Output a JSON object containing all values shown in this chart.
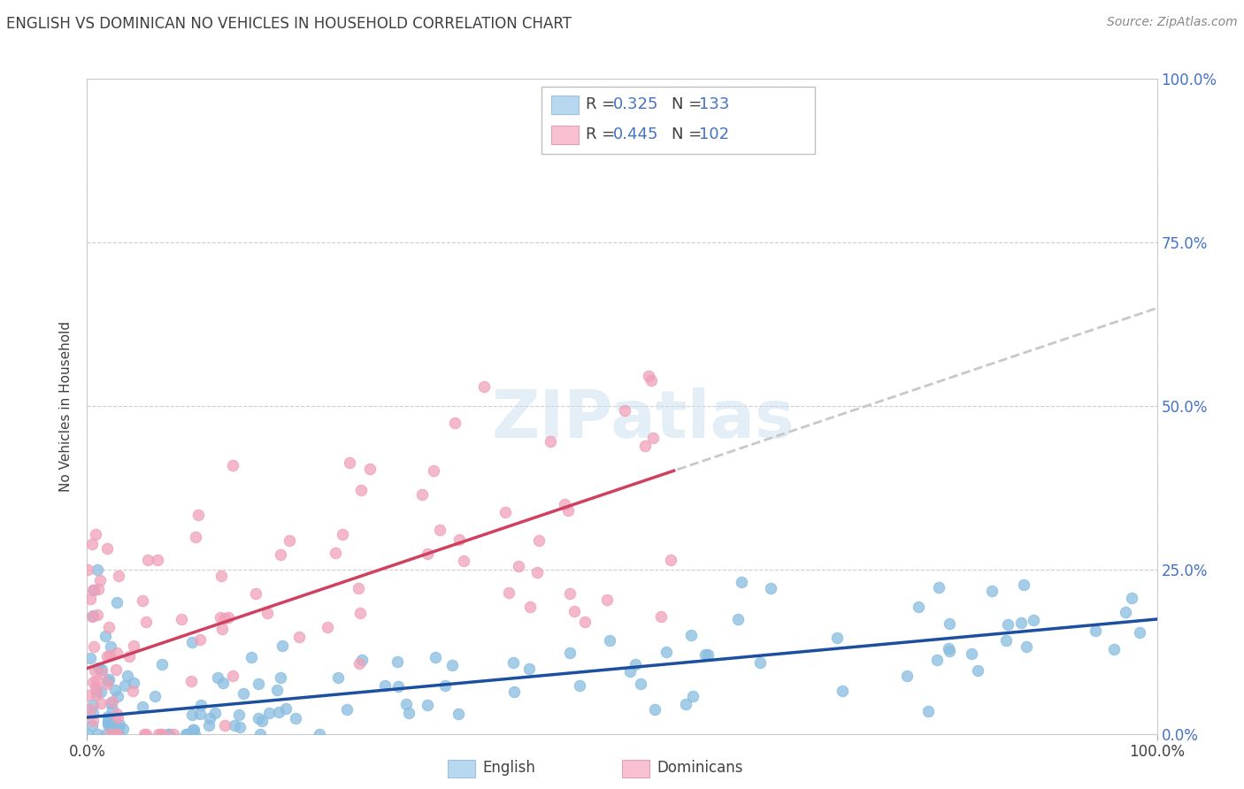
{
  "title": "ENGLISH VS DOMINICAN NO VEHICLES IN HOUSEHOLD CORRELATION CHART",
  "source": "Source: ZipAtlas.com",
  "ylabel": "No Vehicles in Household",
  "watermark": "ZIPatlas",
  "english_R": 0.325,
  "english_N": 133,
  "dominican_R": 0.445,
  "dominican_N": 102,
  "english_scatter_color": "#89bde0",
  "dominican_scatter_color": "#f0a0b8",
  "english_line_color": "#1c4fa0",
  "dominican_line_color": "#d04060",
  "dashed_line_color": "#c8c8c8",
  "english_legend_fill": "#b8d8f0",
  "dominican_legend_fill": "#f8c0d0",
  "right_axis_color": "#4472c4",
  "grid_color": "#c8c8c8",
  "background_color": "#ffffff",
  "title_color": "#404040",
  "source_color": "#888888",
  "stat_color": "#4472c4",
  "text_color": "#404040",
  "xmin": 0.0,
  "xmax": 100.0,
  "ymin": 0.0,
  "ymax": 100.0,
  "ytick_labels": [
    "0.0%",
    "25.0%",
    "50.0%",
    "75.0%",
    "100.0%"
  ],
  "ytick_values": [
    0,
    25,
    50,
    75,
    100
  ],
  "eng_trend_intercept": 2.5,
  "eng_trend_slope": 0.15,
  "dom_trend_intercept": 10.0,
  "dom_trend_slope": 0.55,
  "dom_data_cutoff": 55.0
}
